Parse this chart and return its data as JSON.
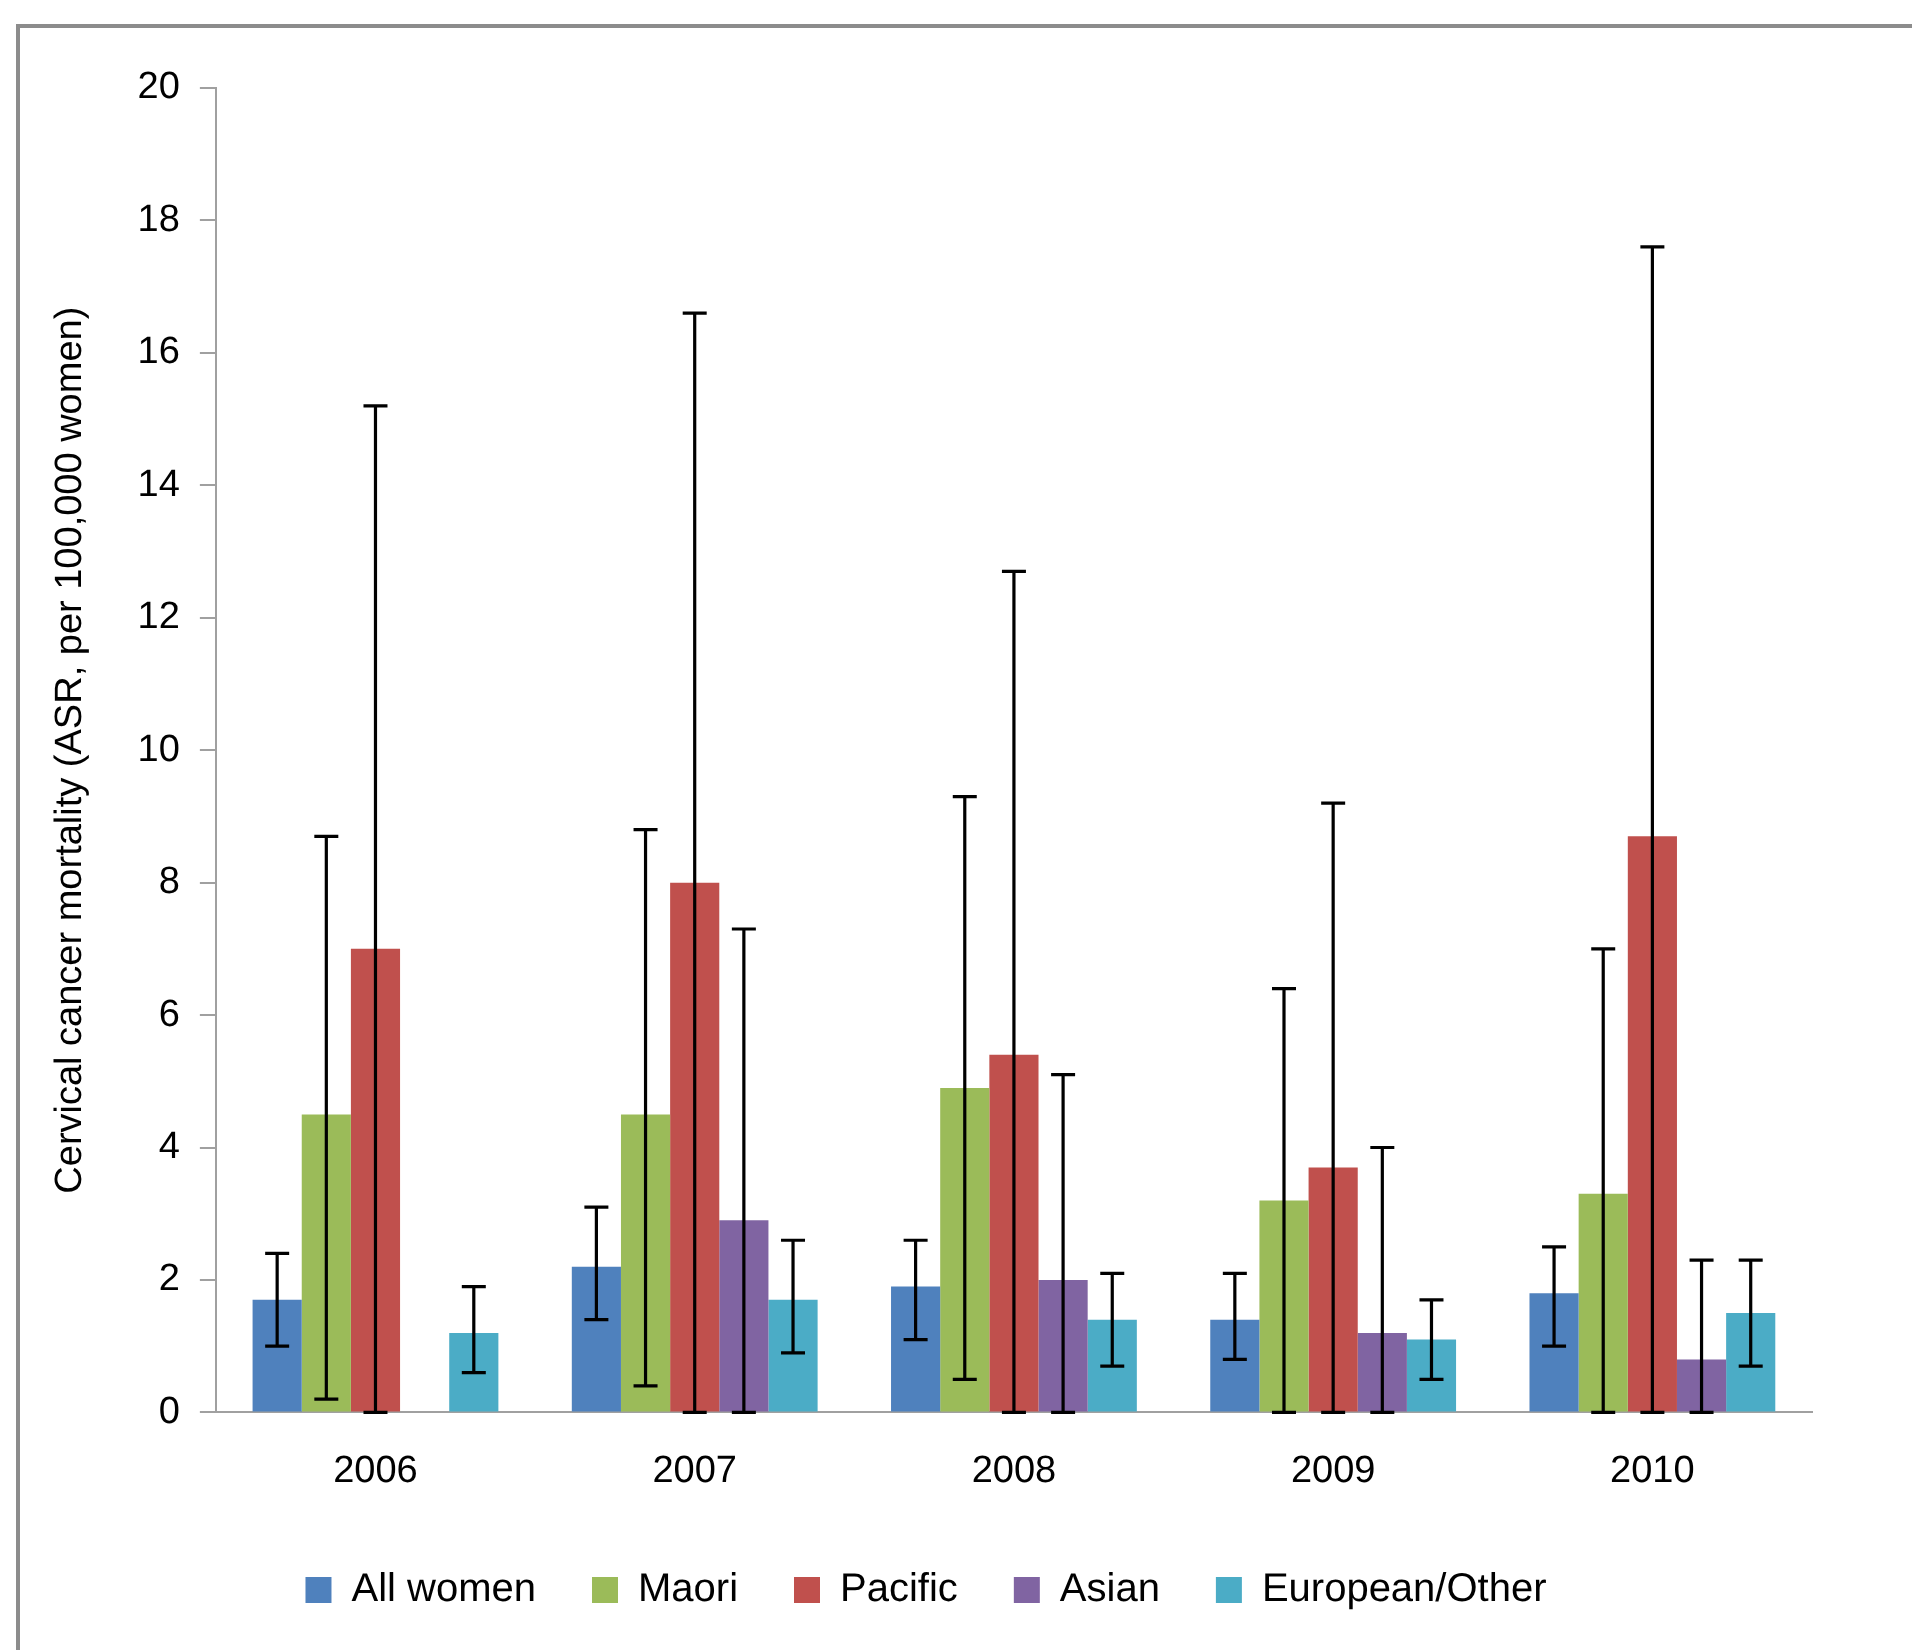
{
  "chart_data": {
    "type": "bar",
    "ylabel": "Cervical cancer mortality (ASR, per 100,000 women)",
    "categories": [
      "2006",
      "2007",
      "2008",
      "2009",
      "2010"
    ],
    "ylim": [
      0,
      20
    ],
    "yticks": [
      0,
      2,
      4,
      6,
      8,
      10,
      12,
      14,
      16,
      18,
      20
    ],
    "grid": false,
    "legend": "bottom",
    "series": [
      {
        "name": "All women",
        "color": "#4f81bd",
        "values": [
          1.7,
          2.2,
          1.9,
          1.4,
          1.8
        ],
        "errors": [
          [
            1.0,
            2.4
          ],
          [
            1.4,
            3.1
          ],
          [
            1.1,
            2.6
          ],
          [
            0.8,
            2.1
          ],
          [
            1.0,
            2.5
          ]
        ]
      },
      {
        "name": "Maori",
        "color": "#9bbb59",
        "values": [
          4.5,
          4.5,
          4.9,
          3.2,
          3.3
        ],
        "errors": [
          [
            0.2,
            8.7
          ],
          [
            0.4,
            8.8
          ],
          [
            0.5,
            9.3
          ],
          [
            0,
            6.4
          ],
          [
            0,
            7.0
          ]
        ]
      },
      {
        "name": "Pacific",
        "color": "#c0504d",
        "values": [
          7.0,
          8.0,
          5.4,
          3.7,
          8.7
        ],
        "errors": [
          [
            0,
            15.2
          ],
          [
            0,
            16.6
          ],
          [
            0,
            12.7
          ],
          [
            0,
            9.2
          ],
          [
            0,
            17.6
          ]
        ]
      },
      {
        "name": "Asian",
        "color": "#8064a2",
        "values": [
          null,
          2.9,
          2.0,
          1.2,
          0.8
        ],
        "errors": [
          null,
          [
            0,
            7.3
          ],
          [
            0,
            5.1
          ],
          [
            0,
            4.0
          ],
          [
            0,
            2.3
          ]
        ]
      },
      {
        "name": "European/Other",
        "color": "#4bacc6",
        "values": [
          1.2,
          1.7,
          1.4,
          1.1,
          1.5
        ],
        "errors": [
          [
            0.6,
            1.9
          ],
          [
            0.9,
            2.6
          ],
          [
            0.7,
            2.1
          ],
          [
            0.5,
            1.7
          ],
          [
            0.7,
            2.3
          ]
        ]
      }
    ]
  }
}
